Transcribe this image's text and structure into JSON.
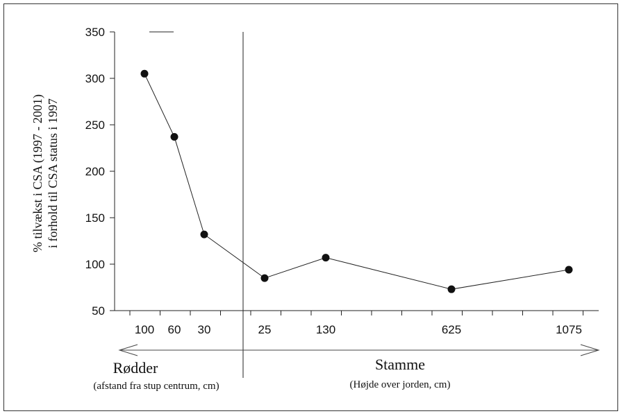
{
  "chart_data": {
    "type": "line",
    "title": "",
    "ylabel_line1": "% tilvækst i CSA (1997 - 2001)",
    "ylabel_line2": "i forhold til CSA status i 1997",
    "ylim": [
      50,
      350
    ],
    "yticks": [
      50,
      100,
      150,
      200,
      250,
      300,
      350
    ],
    "grid": false,
    "legend": "none",
    "categories": [
      "100",
      "60",
      "30",
      "25",
      "130",
      "625",
      "1075"
    ],
    "groups": [
      {
        "label": "Rødder",
        "sublabel": "(afstand fra stup centrum, cm)",
        "categories": [
          "100",
          "60",
          "30"
        ]
      },
      {
        "label": "Stamme",
        "sublabel": "(Højde over jorden, cm)",
        "categories": [
          "25",
          "130",
          "625",
          "1075"
        ]
      }
    ],
    "series": [
      {
        "values": [
          305,
          237,
          132,
          85,
          107,
          73,
          94
        ]
      }
    ],
    "line_color": "#222222",
    "marker_color": "#111111"
  }
}
